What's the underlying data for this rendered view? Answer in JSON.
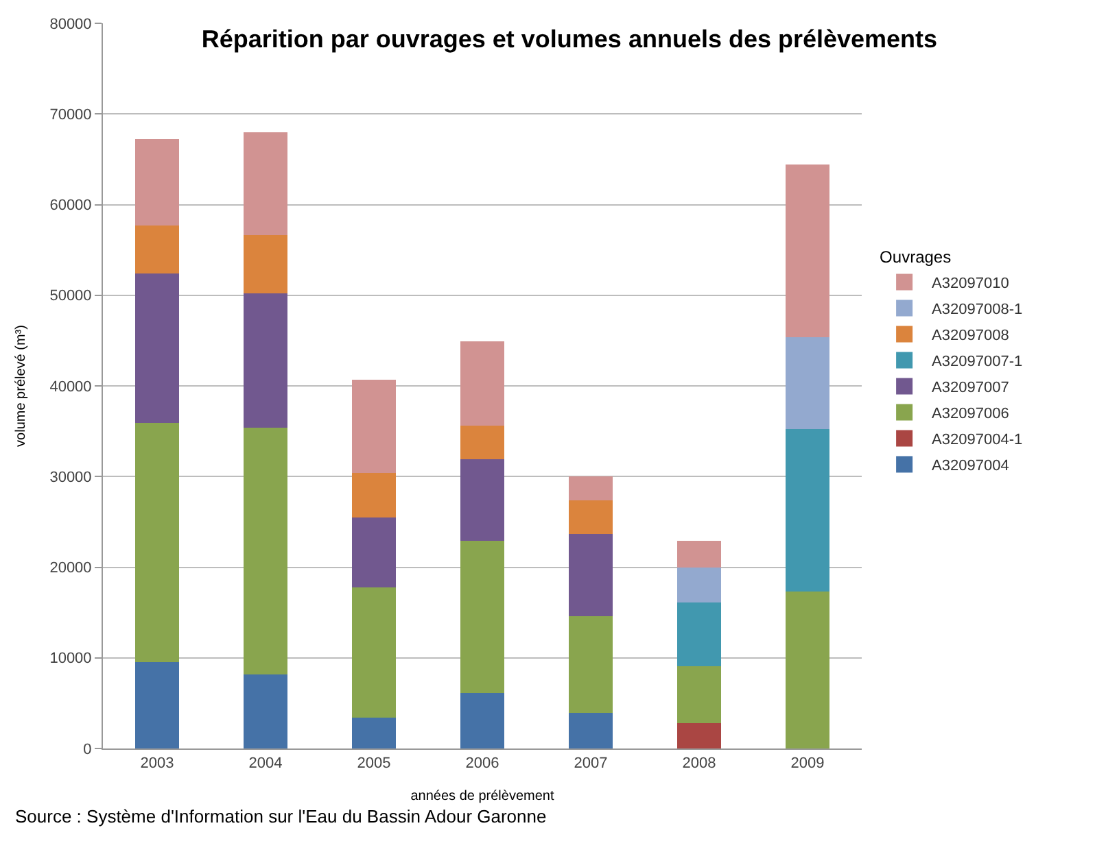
{
  "chart_data": {
    "type": "bar",
    "stacked": true,
    "title": "Réparition par ouvrages et volumes annuels des prélèvements",
    "xlabel": "années de prélèvement",
    "ylabel": "volume prélevé (m³)",
    "legend_title": "Ouvrages",
    "categories": [
      "2003",
      "2004",
      "2005",
      "2006",
      "2007",
      "2008",
      "2009"
    ],
    "series": [
      {
        "name": "A32097004",
        "color": "#4572a7",
        "values": [
          9500,
          8200,
          3400,
          6100,
          3900,
          null,
          null
        ]
      },
      {
        "name": "A32097004-1",
        "color": "#aa4643",
        "values": [
          null,
          null,
          null,
          null,
          null,
          2800,
          null
        ]
      },
      {
        "name": "A32097006",
        "color": "#89a54e",
        "values": [
          26400,
          27200,
          14400,
          16800,
          10700,
          6300,
          17300
        ]
      },
      {
        "name": "A32097007",
        "color": "#71588f",
        "values": [
          16500,
          14800,
          7700,
          9000,
          9100,
          null,
          null
        ]
      },
      {
        "name": "A32097007-1",
        "color": "#4198af",
        "values": [
          null,
          null,
          null,
          null,
          null,
          7000,
          17900
        ]
      },
      {
        "name": "A32097008",
        "color": "#db843d",
        "values": [
          5300,
          6400,
          4900,
          3700,
          3700,
          null,
          null
        ]
      },
      {
        "name": "A32097008-1",
        "color": "#93a9cf",
        "values": [
          null,
          null,
          null,
          null,
          null,
          3900,
          10200
        ]
      },
      {
        "name": "A32097010",
        "color": "#d19392",
        "values": [
          9500,
          11400,
          10300,
          9300,
          2600,
          2900,
          19000
        ]
      }
    ],
    "ylim": [
      0,
      80000
    ],
    "yticks": [
      0,
      10000,
      20000,
      30000,
      40000,
      50000,
      60000,
      70000,
      80000
    ],
    "grid": "y",
    "legend": "right",
    "annotations": [
      "Source : Système d'Information sur l'Eau du Bassin Adour Garonne"
    ]
  }
}
